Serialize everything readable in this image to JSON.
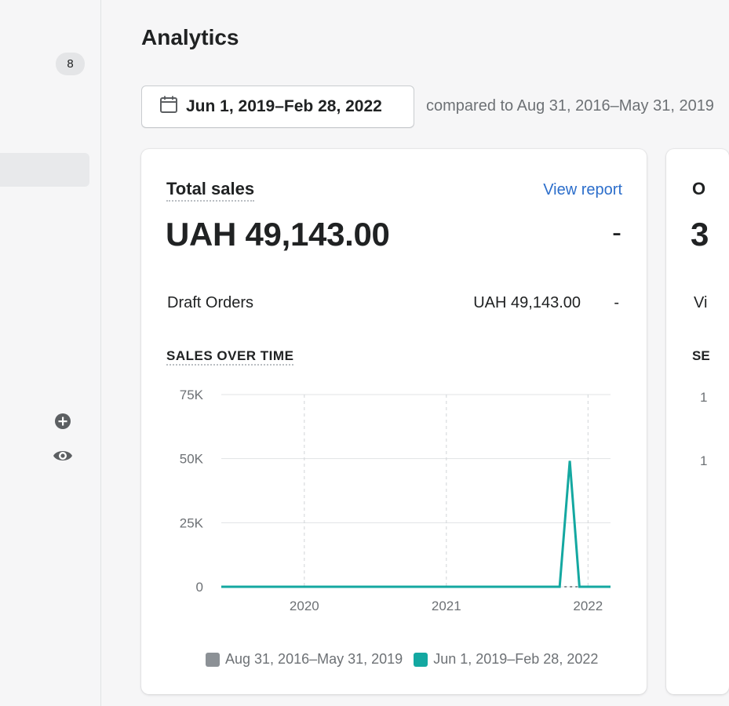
{
  "sidebar": {
    "badge_count": "8",
    "icons": [
      "plus-circle-icon",
      "eye-icon"
    ]
  },
  "page": {
    "title": "Analytics"
  },
  "date_picker": {
    "icon": "calendar-icon",
    "label": "Jun 1, 2019–Feb 28, 2022",
    "compare_text": "compared to Aug 31, 2016–May 31, 2019"
  },
  "total_sales_card": {
    "title": "Total sales",
    "view_report": "View report",
    "value": "UAH 49,143.00",
    "change": "-",
    "rows": [
      {
        "label": "Draft Orders",
        "value": "UAH 49,143.00",
        "change": "-"
      }
    ],
    "section_title": "SALES OVER TIME"
  },
  "second_card": {
    "title": "O",
    "value": "3",
    "row": "Vi",
    "section_title": "SE",
    "ticks": [
      "1",
      "1"
    ]
  },
  "colors": {
    "current": "#14a8a1",
    "previous": "#8c9196",
    "link": "#2c6ecb"
  },
  "chart_data": {
    "type": "line",
    "y_ticks": [
      "75K",
      "50K",
      "25K",
      "0"
    ],
    "x_ticks": [
      "2020",
      "2021",
      "2022"
    ],
    "ylim": [
      0,
      75000
    ],
    "series": [
      {
        "name": "Aug 31, 2016–May 31, 2019",
        "color": "#8c9196",
        "style": "dashed",
        "x": [
          "2021-11-01",
          "2022-02-28"
        ],
        "values": [
          0,
          0
        ]
      },
      {
        "name": "Jun 1, 2019–Feb 28, 2022",
        "color": "#14a8a1",
        "style": "solid",
        "x": [
          "2019-06-01",
          "2021-10-20",
          "2021-11-15",
          "2021-12-10",
          "2022-02-28"
        ],
        "values": [
          0,
          0,
          49143,
          0,
          0
        ]
      }
    ],
    "grid": true,
    "legend_position": "bottom"
  }
}
